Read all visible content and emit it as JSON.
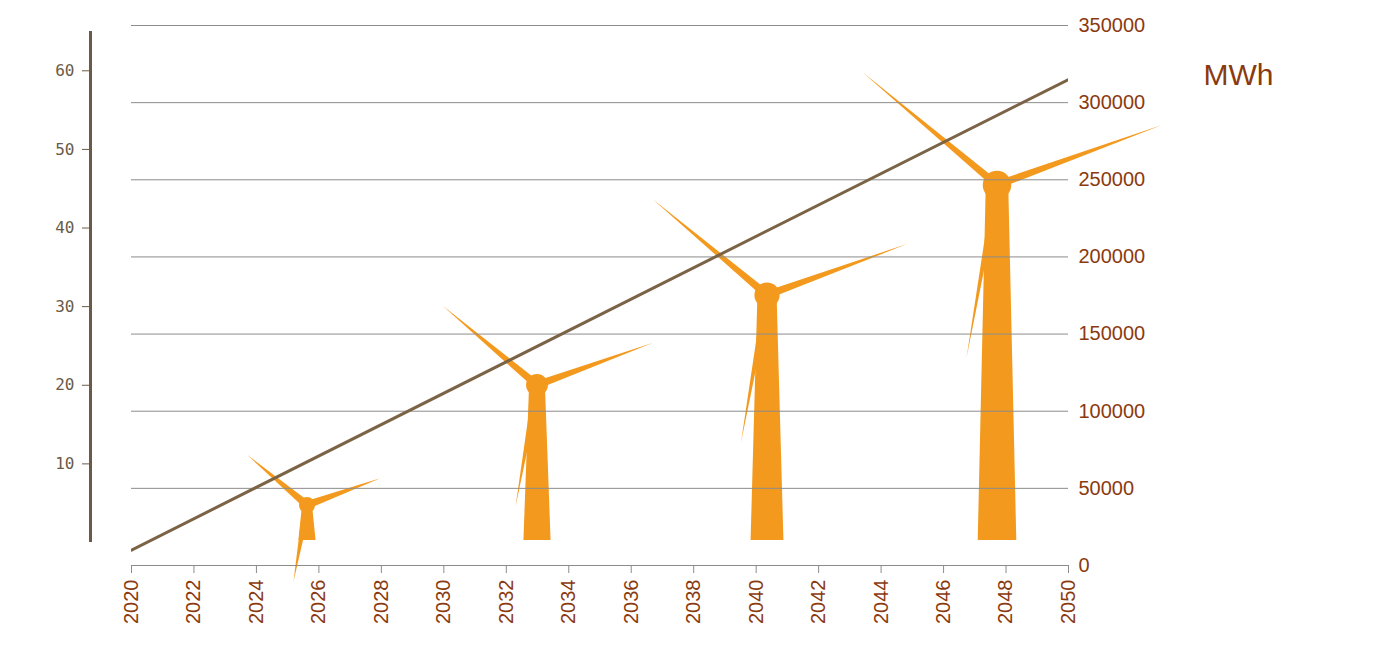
{
  "chart_data": {
    "type": "line",
    "x": [
      2020,
      2050
    ],
    "values": [
      10000,
      315000
    ],
    "color": "#7b6346",
    "xlim": [
      2020,
      2050
    ],
    "xticks": [
      2020,
      2022,
      2024,
      2026,
      2028,
      2030,
      2032,
      2034,
      2036,
      2038,
      2040,
      2042,
      2044,
      2046,
      2048,
      2050
    ],
    "ylim": [
      0,
      350000
    ],
    "yticks": [
      0,
      50000,
      100000,
      150000,
      200000,
      250000,
      300000,
      350000
    ],
    "y_label": "MWh",
    "y2lim": [
      0,
      65
    ],
    "y2ticks": [
      10,
      20,
      30,
      40,
      50,
      60
    ],
    "grid": true
  }
}
